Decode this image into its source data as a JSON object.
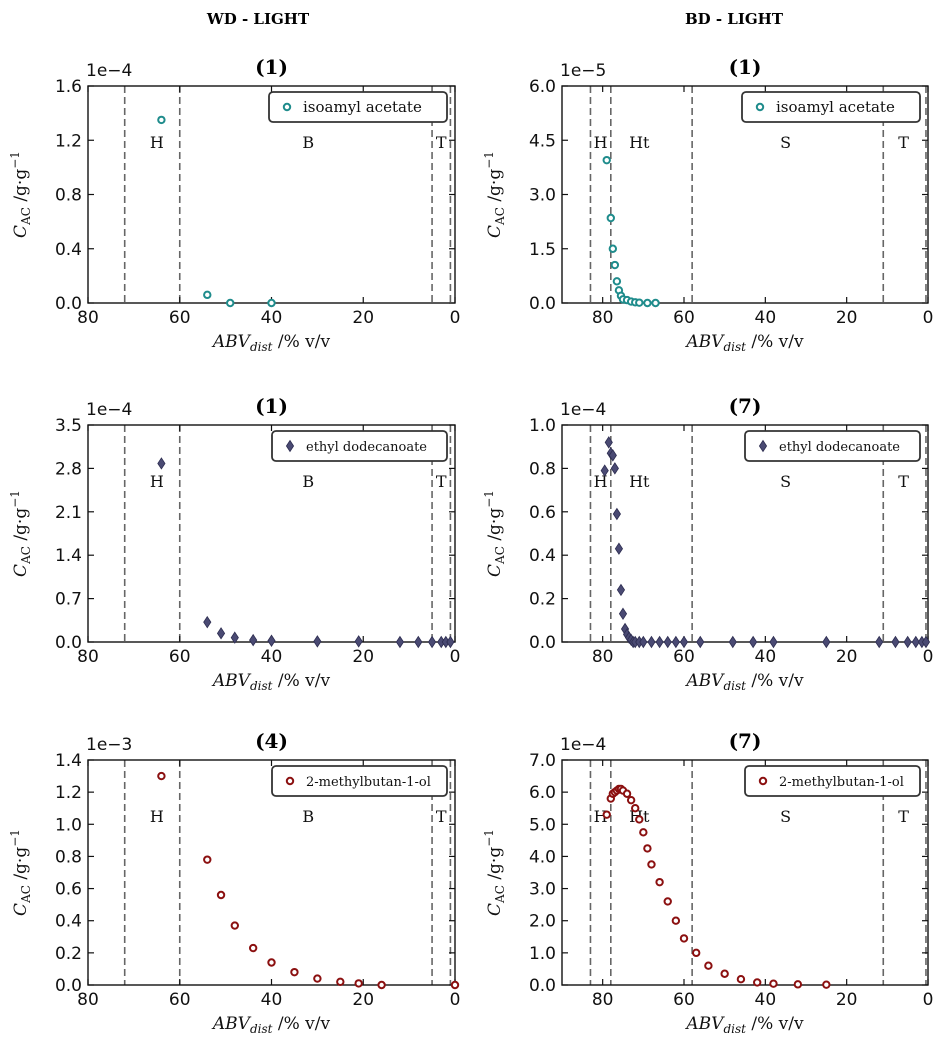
{
  "column_titles": [
    "WD - LIGHT",
    "BD - LIGHT"
  ],
  "chart_data": [
    {
      "type": "scatter",
      "col": 0,
      "row": 0,
      "title": "(1)",
      "multiplier": "1e−4",
      "legend": {
        "label": "isoamyl acetate",
        "position": "top-right"
      },
      "marker": "circle",
      "color": "#1f8c8c",
      "xlim": [
        80,
        0
      ],
      "ylim": [
        0,
        1.6
      ],
      "xticks": [
        80,
        60,
        40,
        20,
        0
      ],
      "yticks": [
        "0.0",
        "0.4",
        "0.8",
        "1.2",
        "1.6"
      ],
      "vlines": [
        72,
        60,
        5,
        1
      ],
      "regions": [
        {
          "label": "H",
          "x": 65
        },
        {
          "label": "B",
          "x": 32
        },
        {
          "label": "T",
          "x": 3
        }
      ],
      "x": [
        64,
        54,
        49,
        40
      ],
      "y": [
        1.35,
        0.06,
        0.0,
        0.0
      ]
    },
    {
      "type": "scatter",
      "col": 1,
      "row": 0,
      "title": "(1)",
      "multiplier": "1e−5",
      "legend": {
        "label": "isoamyl acetate",
        "position": "top-right"
      },
      "marker": "circle",
      "color": "#1f8c8c",
      "xlim": [
        90,
        0
      ],
      "ylim": [
        0,
        6.0
      ],
      "xticks": [
        80,
        60,
        40,
        20,
        0
      ],
      "yticks": [
        "0.0",
        "1.5",
        "3.0",
        "4.5",
        "6.0"
      ],
      "vlines": [
        83,
        78,
        58,
        11,
        0.5
      ],
      "regions": [
        {
          "label": "H",
          "x": 80.5
        },
        {
          "label": "Ht",
          "x": 71
        },
        {
          "label": "S",
          "x": 35
        },
        {
          "label": "T",
          "x": 6
        }
      ],
      "x": [
        79,
        78,
        77.5,
        77,
        76.5,
        76,
        75.5,
        75,
        74,
        73,
        72,
        71,
        69,
        67
      ],
      "y": [
        3.95,
        2.35,
        1.5,
        1.05,
        0.6,
        0.35,
        0.2,
        0.1,
        0.08,
        0.04,
        0.02,
        0.01,
        0.0,
        0.0
      ]
    },
    {
      "type": "scatter",
      "col": 0,
      "row": 1,
      "title": "(1)",
      "multiplier": "1e−4",
      "legend": {
        "label": "ethyl dodecanoate",
        "position": "top-right"
      },
      "marker": "diamond",
      "color": "#4a4a73",
      "xlim": [
        80,
        0
      ],
      "ylim": [
        0,
        3.5
      ],
      "xticks": [
        80,
        60,
        40,
        20,
        0
      ],
      "yticks": [
        "0.0",
        "0.7",
        "1.4",
        "2.1",
        "2.8",
        "3.5"
      ],
      "vlines": [
        72,
        60,
        5,
        1
      ],
      "regions": [
        {
          "label": "H",
          "x": 65
        },
        {
          "label": "B",
          "x": 32
        },
        {
          "label": "T",
          "x": 3
        }
      ],
      "x": [
        64,
        54,
        51,
        48,
        44,
        40,
        30,
        21,
        12,
        8,
        5,
        3,
        2,
        1
      ],
      "y": [
        2.88,
        0.32,
        0.14,
        0.07,
        0.03,
        0.02,
        0.01,
        0.01,
        0.0,
        0.0,
        0.0,
        0.0,
        0.0,
        0.0
      ]
    },
    {
      "type": "scatter",
      "col": 1,
      "row": 1,
      "title": "(7)",
      "multiplier": "1e−4",
      "legend": {
        "label": "ethyl dodecanoate",
        "position": "top-right"
      },
      "marker": "diamond",
      "color": "#4a4a73",
      "xlim": [
        90,
        0
      ],
      "ylim": [
        0,
        1.0
      ],
      "xticks": [
        80,
        60,
        40,
        20,
        0
      ],
      "yticks": [
        "0.0",
        "0.2",
        "0.4",
        "0.6",
        "0.8",
        "1.0"
      ],
      "vlines": [
        83,
        78,
        58,
        11,
        0.5
      ],
      "regions": [
        {
          "label": "H",
          "x": 80.5
        },
        {
          "label": "Ht",
          "x": 71
        },
        {
          "label": "S",
          "x": 35
        },
        {
          "label": "T",
          "x": 6
        }
      ],
      "x": [
        79.5,
        78.5,
        78,
        77.5,
        77,
        76.5,
        76,
        75.5,
        75,
        74.5,
        74,
        73.5,
        73,
        72.5,
        72,
        71,
        70,
        68,
        66,
        64,
        62,
        60,
        56,
        48,
        43,
        38,
        25,
        12,
        8,
        5,
        3,
        1.5,
        0.5
      ],
      "y": [
        0.79,
        0.92,
        0.87,
        0.86,
        0.8,
        0.59,
        0.43,
        0.24,
        0.13,
        0.06,
        0.035,
        0.02,
        0.01,
        0.0,
        0.0,
        0.0,
        0.0,
        0.0,
        0.0,
        0.0,
        0.0,
        0.0,
        0.0,
        0.0,
        0.0,
        0.0,
        0.0,
        0.0,
        0.0,
        0.0,
        0.0,
        0.0,
        0.0
      ]
    },
    {
      "type": "scatter",
      "col": 0,
      "row": 2,
      "title": "(4)",
      "multiplier": "1e−3",
      "legend": {
        "label": "2-methylbutan-1-ol",
        "position": "top-right"
      },
      "marker": "circle",
      "color": "#8b1010",
      "xlim": [
        80,
        0
      ],
      "ylim": [
        0,
        1.4
      ],
      "xticks": [
        80,
        60,
        40,
        20,
        0
      ],
      "yticks": [
        "0.0",
        "0.2",
        "0.4",
        "0.6",
        "0.8",
        "1.0",
        "1.2",
        "1.4"
      ],
      "vlines": [
        72,
        60,
        5,
        1
      ],
      "regions": [
        {
          "label": "H",
          "x": 65
        },
        {
          "label": "B",
          "x": 32
        },
        {
          "label": "T",
          "x": 3
        }
      ],
      "x": [
        64,
        54,
        51,
        48,
        44,
        40,
        35,
        30,
        25,
        21,
        16,
        0
      ],
      "y": [
        1.3,
        0.78,
        0.56,
        0.37,
        0.23,
        0.14,
        0.08,
        0.04,
        0.02,
        0.01,
        0.0,
        0.0
      ]
    },
    {
      "type": "scatter",
      "col": 1,
      "row": 2,
      "title": "(7)",
      "multiplier": "1e−4",
      "legend": {
        "label": "2-methylbutan-1-ol",
        "position": "top-right"
      },
      "marker": "circle",
      "color": "#8b1010",
      "xlim": [
        90,
        0
      ],
      "ylim": [
        0,
        7.0
      ],
      "xticks": [
        80,
        60,
        40,
        20,
        0
      ],
      "yticks": [
        "0.0",
        "1.0",
        "2.0",
        "3.0",
        "4.0",
        "5.0",
        "6.0",
        "7.0"
      ],
      "vlines": [
        83,
        78,
        58,
        11,
        0.5
      ],
      "regions": [
        {
          "label": "H",
          "x": 80.5
        },
        {
          "label": "Ht",
          "x": 71
        },
        {
          "label": "S",
          "x": 35
        },
        {
          "label": "T",
          "x": 6
        }
      ],
      "x": [
        79,
        78,
        77.5,
        77,
        76.5,
        76,
        75.5,
        75,
        74,
        73,
        72,
        71,
        70,
        69,
        68,
        66,
        64,
        62,
        60,
        57,
        54,
        50,
        46,
        42,
        38,
        32,
        25
      ],
      "y": [
        5.3,
        5.8,
        5.95,
        6.0,
        6.05,
        6.1,
        6.1,
        6.05,
        5.95,
        5.75,
        5.5,
        5.15,
        4.75,
        4.25,
        3.75,
        3.2,
        2.6,
        2.0,
        1.45,
        1.0,
        0.6,
        0.35,
        0.18,
        0.08,
        0.04,
        0.02,
        0.01
      ]
    }
  ],
  "xlabel": {
    "main": "ABV",
    "sub": "dist",
    "rest": " /% v/v"
  },
  "ylabel": {
    "main": "C",
    "sub": "AC",
    "rest": " /g·g",
    "sup": "−1"
  }
}
